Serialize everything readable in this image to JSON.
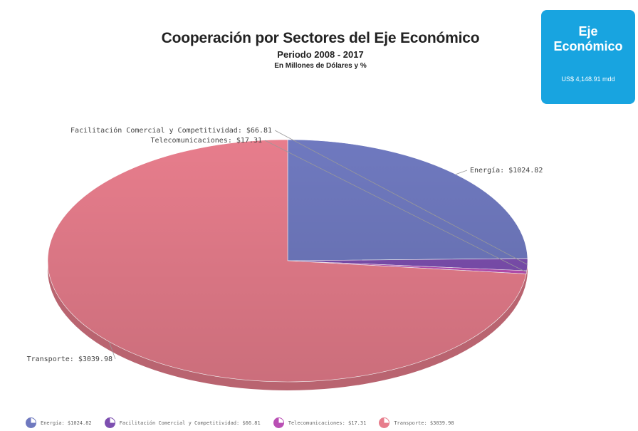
{
  "header": {
    "title": "Cooperación por Sectores del Eje Económico",
    "subtitle": "Periodo 2008 - 2017",
    "unit": "En Millones de Dólares y %"
  },
  "badge": {
    "line1": "Eje",
    "line2": "Económico",
    "total": "US$ 4,148.91 mdd",
    "color": "#18a4e0"
  },
  "chart_data": {
    "type": "pie",
    "title": "Cooperación por Sectores del Eje Económico",
    "subtitle": "Periodo 2008 - 2017",
    "legend_position": "bottom",
    "slices": [
      {
        "name": "Energía",
        "value": 1024.82,
        "label": "Energía: $1024.82",
        "legend": "Energía: $1024.82",
        "color": "#6f79bf"
      },
      {
        "name": "Facilitación Comercial y Competitividad",
        "value": 66.81,
        "label": "Facilitación Comercial y Competitividad: $66.81",
        "legend": "Facilitación Comercial y Competitividad: $66.81",
        "color": "#7d4fb0"
      },
      {
        "name": "Telecomunicaciones",
        "value": 17.31,
        "label": "Telecomunicaciones: $17.31",
        "legend": "Telecomunicaciones: $17.31",
        "color": "#b94fb4"
      },
      {
        "name": "Transporte",
        "value": 3039.98,
        "label": "Transporte: $3039.98",
        "legend": "Transporte: $3039.98",
        "color": "#e77d8c"
      }
    ]
  }
}
